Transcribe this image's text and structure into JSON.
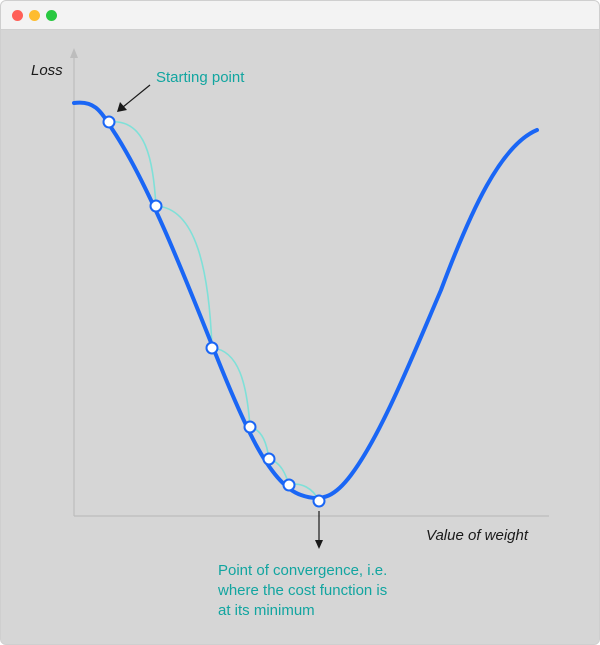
{
  "window": {
    "controls": [
      "close",
      "minimize",
      "zoom"
    ]
  },
  "diagram": {
    "y_axis_label": "Loss",
    "x_axis_label": "Value of weight",
    "start_annotation": "Starting point",
    "convergence_annotation": [
      "Point of convergence, i.e.",
      "where the cost function is",
      "at its minimum"
    ],
    "colors": {
      "curve": "#1a66f5",
      "steps": "#7fe0d8",
      "annotation": "#12a5a0",
      "axes": "#bdbdbd",
      "background": "#d6d6d6"
    },
    "gradient_steps": 6
  }
}
